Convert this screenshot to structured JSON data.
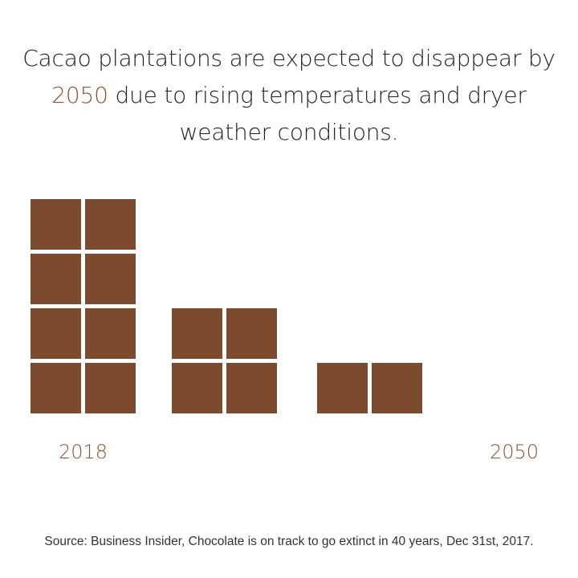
{
  "header": {
    "title_part1": "Cacao plantations are expected to disappear by",
    "title_highlight": "2050",
    "title_part2": "due to rising temperatures and dryer weather conditions.",
    "highlight_color": "#8b5535"
  },
  "chart_data": {
    "type": "bar",
    "unit": "chocolate squares",
    "values": [
      8,
      4,
      2,
      0
    ],
    "labels": [
      "2018",
      "",
      "",
      "2050"
    ],
    "block_color": "#7b4a2f",
    "label_color": "#8b5535",
    "columns_per_bar": 2
  },
  "footer": {
    "source": "Source: Business Insider, Chocolate is on track to go extinct in 40 years, Dec 31st, 2017."
  }
}
